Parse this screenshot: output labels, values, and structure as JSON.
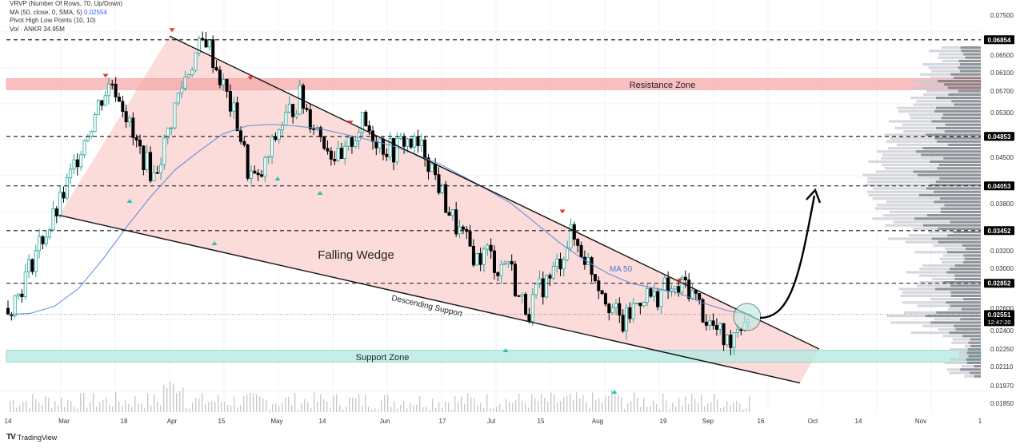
{
  "legend": {
    "vrvp": "VRVP (Number Of Rows, 70, Up/Down)",
    "ma_label": "MA (50, close, 0, SMA, 5)",
    "ma_value": "0.02554",
    "pivot": "Pivot High Low Points (10, 10)",
    "vol": "Vol · ANKR  34.95M"
  },
  "branding": "TradingView",
  "annotations": {
    "resistance_zone": "Resistance Zone",
    "support_zone": "Support Zone",
    "pattern": "Falling Wedge",
    "descending_support": "Descending Support",
    "ma50": "MA 50"
  },
  "chart_data": {
    "type": "candlestick",
    "title": "",
    "x_ticks": [
      "14",
      "Mar",
      "18",
      "Apr",
      "15",
      "May",
      "14",
      "Jun",
      "17",
      "Jul",
      "15",
      "Aug",
      "19",
      "Sep",
      "16",
      "Oct",
      "14",
      "Nov",
      "1"
    ],
    "y_ticks": [
      "0.07500",
      "0.06500",
      "0.06100",
      "0.05700",
      "0.05300",
      "0.04500",
      "0.03800",
      "0.03200",
      "0.03000",
      "0.02600",
      "0.02400",
      "0.02250",
      "0.02110",
      "0.01970",
      "0.01850"
    ],
    "price_labels": [
      {
        "value": "0.06854",
        "highlight": true
      },
      {
        "value": "0.04853",
        "highlight": true
      },
      {
        "value": "0.04053",
        "highlight": true
      },
      {
        "value": "0.03452",
        "highlight": true
      },
      {
        "value": "0.02852",
        "highlight": true
      },
      {
        "value": "0.02551",
        "highlight": true,
        "sub": "12:47:20"
      }
    ],
    "horizontal_levels": [
      0.06854,
      0.04853,
      0.04053,
      0.03452,
      0.02852
    ],
    "current_price": 0.02551,
    "resistance_zone": [
      0.0573,
      0.0597
    ],
    "support_zone": [
      0.02145,
      0.0224
    ],
    "close_path": [
      0.026,
      0.0275,
      0.03,
      0.033,
      0.035,
      0.038,
      0.042,
      0.047,
      0.051,
      0.056,
      0.059,
      0.055,
      0.048,
      0.045,
      0.042,
      0.047,
      0.054,
      0.06,
      0.065,
      0.069,
      0.062,
      0.056,
      0.051,
      0.043,
      0.041,
      0.045,
      0.05,
      0.053,
      0.056,
      0.052,
      0.049,
      0.046,
      0.044,
      0.048,
      0.051,
      0.049,
      0.047,
      0.046,
      0.048,
      0.047,
      0.046,
      0.042,
      0.038,
      0.035,
      0.033,
      0.031,
      0.032,
      0.03,
      0.031,
      0.027,
      0.026,
      0.028,
      0.029,
      0.031,
      0.034,
      0.032,
      0.03,
      0.028,
      0.026,
      0.0245,
      0.026,
      0.0275,
      0.027,
      0.028,
      0.0275,
      0.0285,
      0.027,
      0.025,
      0.024,
      0.023,
      0.0245,
      0.0255
    ],
    "ma50_path": [
      0.0255,
      0.0256,
      0.0262,
      0.028,
      0.031,
      0.035,
      0.039,
      0.043,
      0.046,
      0.049,
      0.0505,
      0.0508,
      0.0505,
      0.05,
      0.049,
      0.048,
      0.047,
      0.0455,
      0.044,
      0.042,
      0.04,
      0.038,
      0.0355,
      0.033,
      0.031,
      0.0295,
      0.0285,
      0.028,
      0.0275,
      0.0265,
      0.0258,
      0.0255
    ],
    "wedge": {
      "resistance_start": 0.0695,
      "resistance_end": 0.0225,
      "support_start": 0.0365,
      "support_end": 0.0199
    },
    "pivot_highs": [
      0.059,
      0.0695,
      0.0585,
      0.05,
      0.0362,
      0.0282
    ],
    "pivot_lows": [
      0.039,
      0.0345,
      0.0415,
      0.0435,
      0.0225,
      0.023,
      0.0198
    ],
    "colors": {
      "up": "#26a69a",
      "down": "#000000",
      "resistance_zone": "#f7a9ab",
      "support_zone": "#b7ebe3",
      "wedge_fill": "#fbd3d1",
      "ma": "#5b8ad6",
      "pivot_high": "#e53935",
      "pivot_low": "#26c6b0",
      "price_tag": "#000000"
    }
  }
}
